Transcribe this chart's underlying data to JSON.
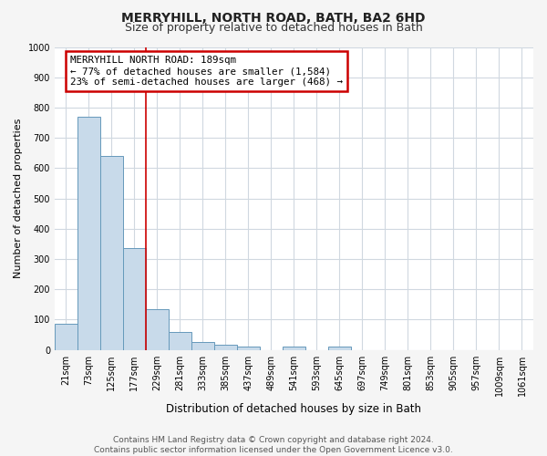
{
  "title": "MERRYHILL, NORTH ROAD, BATH, BA2 6HD",
  "subtitle": "Size of property relative to detached houses in Bath",
  "xlabel": "Distribution of detached houses by size in Bath",
  "ylabel": "Number of detached properties",
  "footer_line1": "Contains HM Land Registry data © Crown copyright and database right 2024.",
  "footer_line2": "Contains public sector information licensed under the Open Government Licence v3.0.",
  "bin_labels": [
    "21sqm",
    "73sqm",
    "125sqm",
    "177sqm",
    "229sqm",
    "281sqm",
    "333sqm",
    "385sqm",
    "437sqm",
    "489sqm",
    "541sqm",
    "593sqm",
    "645sqm",
    "697sqm",
    "749sqm",
    "801sqm",
    "853sqm",
    "905sqm",
    "957sqm",
    "1009sqm",
    "1061sqm"
  ],
  "bar_values": [
    85,
    770,
    640,
    335,
    135,
    60,
    25,
    18,
    12,
    0,
    12,
    0,
    10,
    0,
    0,
    0,
    0,
    0,
    0,
    0,
    0
  ],
  "bar_color": "#c8daea",
  "bar_edge_color": "#6699bb",
  "ylim": [
    0,
    1000
  ],
  "yticks": [
    0,
    100,
    200,
    300,
    400,
    500,
    600,
    700,
    800,
    900,
    1000
  ],
  "vline_color": "#cc0000",
  "annotation_title": "MERRYHILL NORTH ROAD: 189sqm",
  "annotation_line1": "← 77% of detached houses are smaller (1,584)",
  "annotation_line2": "23% of semi-detached houses are larger (468) →",
  "annotation_box_edge": "#cc0000",
  "fig_background": "#f5f5f5",
  "plot_background": "#ffffff",
  "grid_color": "#d0d8e0",
  "title_fontsize": 10,
  "subtitle_fontsize": 9,
  "ylabel_fontsize": 8,
  "xlabel_fontsize": 8.5,
  "tick_fontsize": 7,
  "footer_fontsize": 6.5
}
